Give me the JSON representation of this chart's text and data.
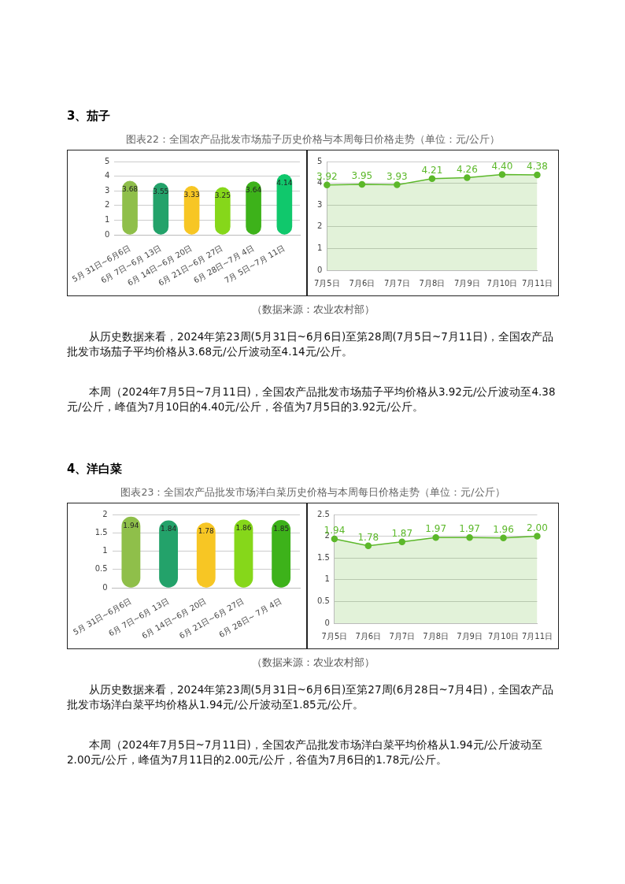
{
  "chart_data": [
    {
      "type": "bar",
      "subtitle": "3、茄子",
      "title": "图表22：全国农产品批发市场茄子历史价格与本周每日价格走势（单位：元/公斤）",
      "categories": [
        "5月 31日~6月6日",
        "6月 7日~6月 13日",
        "6月 14日~6月 20日",
        "6月 21日~6月 27日",
        "6月 28日~7月 4日",
        "7月 5日~7月 11日"
      ],
      "values": [
        3.68,
        3.55,
        3.33,
        3.25,
        3.64,
        4.14
      ],
      "colors": [
        "#8fbf4a",
        "#23a26a",
        "#f7c624",
        "#86d71a",
        "#3db21a",
        "#10c86c"
      ],
      "ylim": [
        0,
        5
      ],
      "yticks": [
        0,
        1,
        2,
        3,
        4,
        5
      ],
      "grid": "y",
      "data_labels": true
    },
    {
      "type": "area",
      "categories": [
        "7月5日",
        "7月6日",
        "7月7日",
        "7月8日",
        "7月9日",
        "7月10日",
        "7月11日"
      ],
      "values": [
        3.92,
        3.95,
        3.93,
        4.21,
        4.26,
        4.4,
        4.38
      ],
      "value_labels": [
        "3.92",
        "3.95",
        "3.93",
        "4.21",
        "4.26",
        "4.40",
        "4.38"
      ],
      "color": "#5cb82a",
      "ylim": [
        0,
        5
      ],
      "yticks": [
        0,
        1,
        2,
        3,
        4,
        5
      ],
      "grid": "y",
      "marker": "circle",
      "annotations": [
        "（数据来源：农业农村部）",
        "从历史数据来看，2024年第23周(5月31日~6月6日)至第28周(7月5日~7月11日)，全国农产品批发市场茄子平均价格从3.68元/公斤波动至4.14元/公斤。",
        "本周（2024年7月5日~7月11日)，全国农产品批发市场茄子平均价格从3.92元/公斤波动至4.38元/公斤，峰值为7月10日的4.40元/公斤，谷值为7月5日的3.92元/公斤。"
      ]
    },
    {
      "type": "bar",
      "subtitle": "4、洋白菜",
      "title": "图表23：全国农产品批发市场洋白菜历史价格与本周每日价格走势（单位：元/公斤）",
      "categories": [
        "5月 31日~6月6日",
        "6月 7日~6月 13日",
        "6月 14日~6月 20日",
        "6月 21日~6月 27日",
        "6月 28日~ 7月 4日"
      ],
      "values": [
        1.94,
        1.84,
        1.78,
        1.86,
        1.85
      ],
      "colors": [
        "#8fbf4a",
        "#23a26a",
        "#f7c624",
        "#86d71a",
        "#3db21a"
      ],
      "ylim": [
        0,
        2
      ],
      "yticks": [
        0,
        0.5,
        1,
        1.5,
        2
      ],
      "grid": "y",
      "data_labels": true
    },
    {
      "type": "area",
      "categories": [
        "7月5日",
        "7月6日",
        "7月7日",
        "7月8日",
        "7月9日",
        "7月10日",
        "7月11日"
      ],
      "values": [
        1.94,
        1.78,
        1.87,
        1.97,
        1.97,
        1.96,
        2.0
      ],
      "value_labels": [
        "1.94",
        "1.78",
        "1.87",
        "1.97",
        "1.97",
        "1.96",
        "2.00"
      ],
      "color": "#5cb82a",
      "ylim": [
        0,
        2.5
      ],
      "yticks": [
        0,
        0.5,
        1,
        1.5,
        2,
        2.5
      ],
      "grid": "y",
      "marker": "circle",
      "annotations": [
        "（数据来源：农业农村部）",
        "从历史数据来看，2024年第23周(5月31日~6月6日)至第27周(6月28日~7月4日)，全国农产品批发市场洋白菜平均价格从1.94元/公斤波动至1.85元/公斤。",
        "本周（2024年7月5日~7月11日)，全国农产品批发市场洋白菜平均价格从1.94元/公斤波动至2.00元/公斤，峰值为7月11日的2.00元/公斤，谷值为7月6日的1.78元/公斤。"
      ]
    }
  ]
}
